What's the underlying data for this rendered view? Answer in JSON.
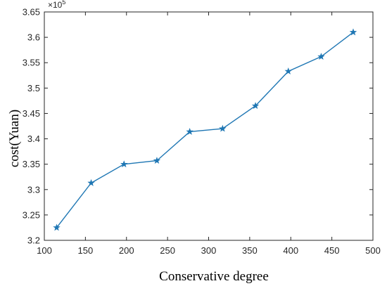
{
  "chart_data": {
    "type": "line",
    "title": "",
    "xlabel": "Conservative degree",
    "ylabel": "cost(Yuan)",
    "y_multiplier_base": "×10",
    "y_multiplier_exp": "5",
    "xlim": [
      100,
      500
    ],
    "ylim": [
      3.2,
      3.65
    ],
    "xticks": [
      100,
      150,
      200,
      250,
      300,
      350,
      400,
      450,
      500
    ],
    "yticks": [
      3.2,
      3.25,
      3.3,
      3.35,
      3.4,
      3.45,
      3.5,
      3.55,
      3.6,
      3.65
    ],
    "xtick_labels": [
      "100",
      "150",
      "200",
      "250",
      "300",
      "350",
      "400",
      "450",
      "500"
    ],
    "ytick_labels": [
      "3.2",
      "3.25",
      "3.3",
      "3.35",
      "3.4",
      "3.45",
      "3.5",
      "3.55",
      "3.6",
      "3.65"
    ],
    "grid": false,
    "marker": "star",
    "color": "#1f77b4",
    "series": [
      {
        "x": [
          115,
          157,
          197,
          237,
          277,
          317,
          357,
          397,
          437,
          476
        ],
        "values": [
          3.225,
          3.313,
          3.35,
          3.357,
          3.414,
          3.42,
          3.465,
          3.533,
          3.562,
          3.61
        ]
      }
    ]
  }
}
